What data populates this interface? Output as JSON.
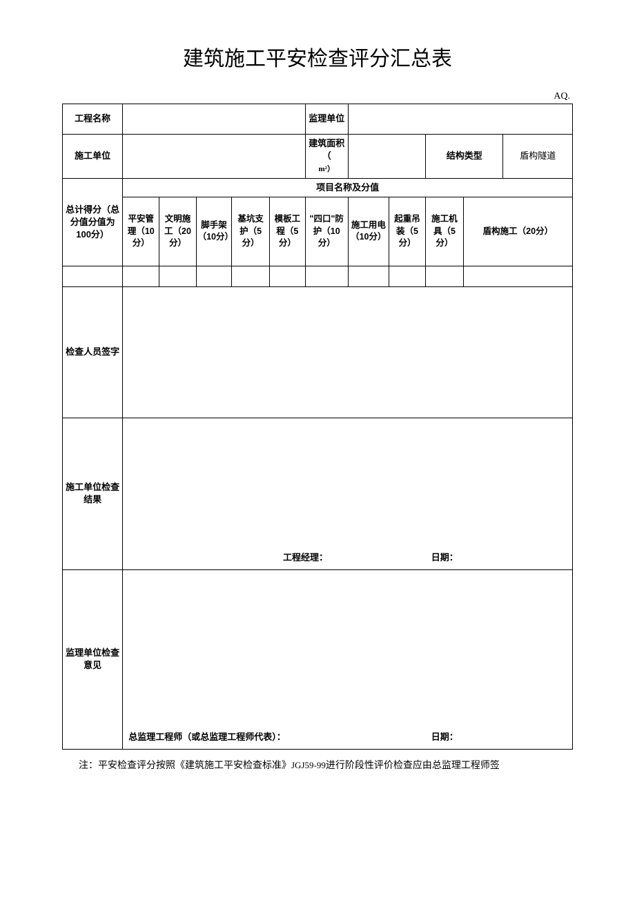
{
  "title": "建筑施工平安检查评分汇总表",
  "doc_code": "AQ.",
  "header": {
    "project_name_label": "工程名称",
    "project_name_value": "",
    "supervisor_label": "监理单位",
    "supervisor_value": "",
    "construction_unit_label": "施工单位",
    "construction_unit_value": "",
    "building_area_label_line1": "建筑面积（",
    "building_area_label_line2": "m²）",
    "building_area_value": "",
    "structure_type_label": "结构类型",
    "structure_type_value": "盾构隧道"
  },
  "score_section": {
    "group_header": "项目名称及分值",
    "total_label": "总计得分（总分值分值为100分）",
    "columns": [
      "平安管理（10分）",
      "文明施工（20分）",
      "脚手架（10分）",
      "基坑支护（5分）",
      "模板工程（5分）",
      "\"四口\"防护（10分）",
      "施工用电（10分）",
      "起重吊装（5分）",
      "施工机具（5分）",
      "盾构施工（20分）"
    ],
    "values": [
      "",
      "",
      "",
      "",
      "",
      "",
      "",
      "",
      "",
      "",
      ""
    ]
  },
  "rows": {
    "inspector_sign_label": "检查人员签字",
    "inspector_sign_value": "",
    "construction_result_label": "施工单位检查结果",
    "construction_result_signer": "工程经理：",
    "construction_result_date": "日期：",
    "supervisor_opinion_label": "监理单位检查意见",
    "supervisor_opinion_signer": "总监理工程师（或总监理工程师代表）：",
    "supervisor_opinion_date": "日期："
  },
  "note": {
    "prefix": "注：平安检查评分按照《建筑施工平安检查标准》",
    "std": "JGJ59-99",
    "suffix": "进行阶段性评价检查应由总监理工程师签"
  },
  "layout": {
    "col_widths_pct": [
      11.8,
      7.2,
      7.2,
      7.0,
      7.4,
      7.0,
      8.4,
      8.0,
      7.2,
      7.4,
      7.8,
      13.6
    ]
  }
}
